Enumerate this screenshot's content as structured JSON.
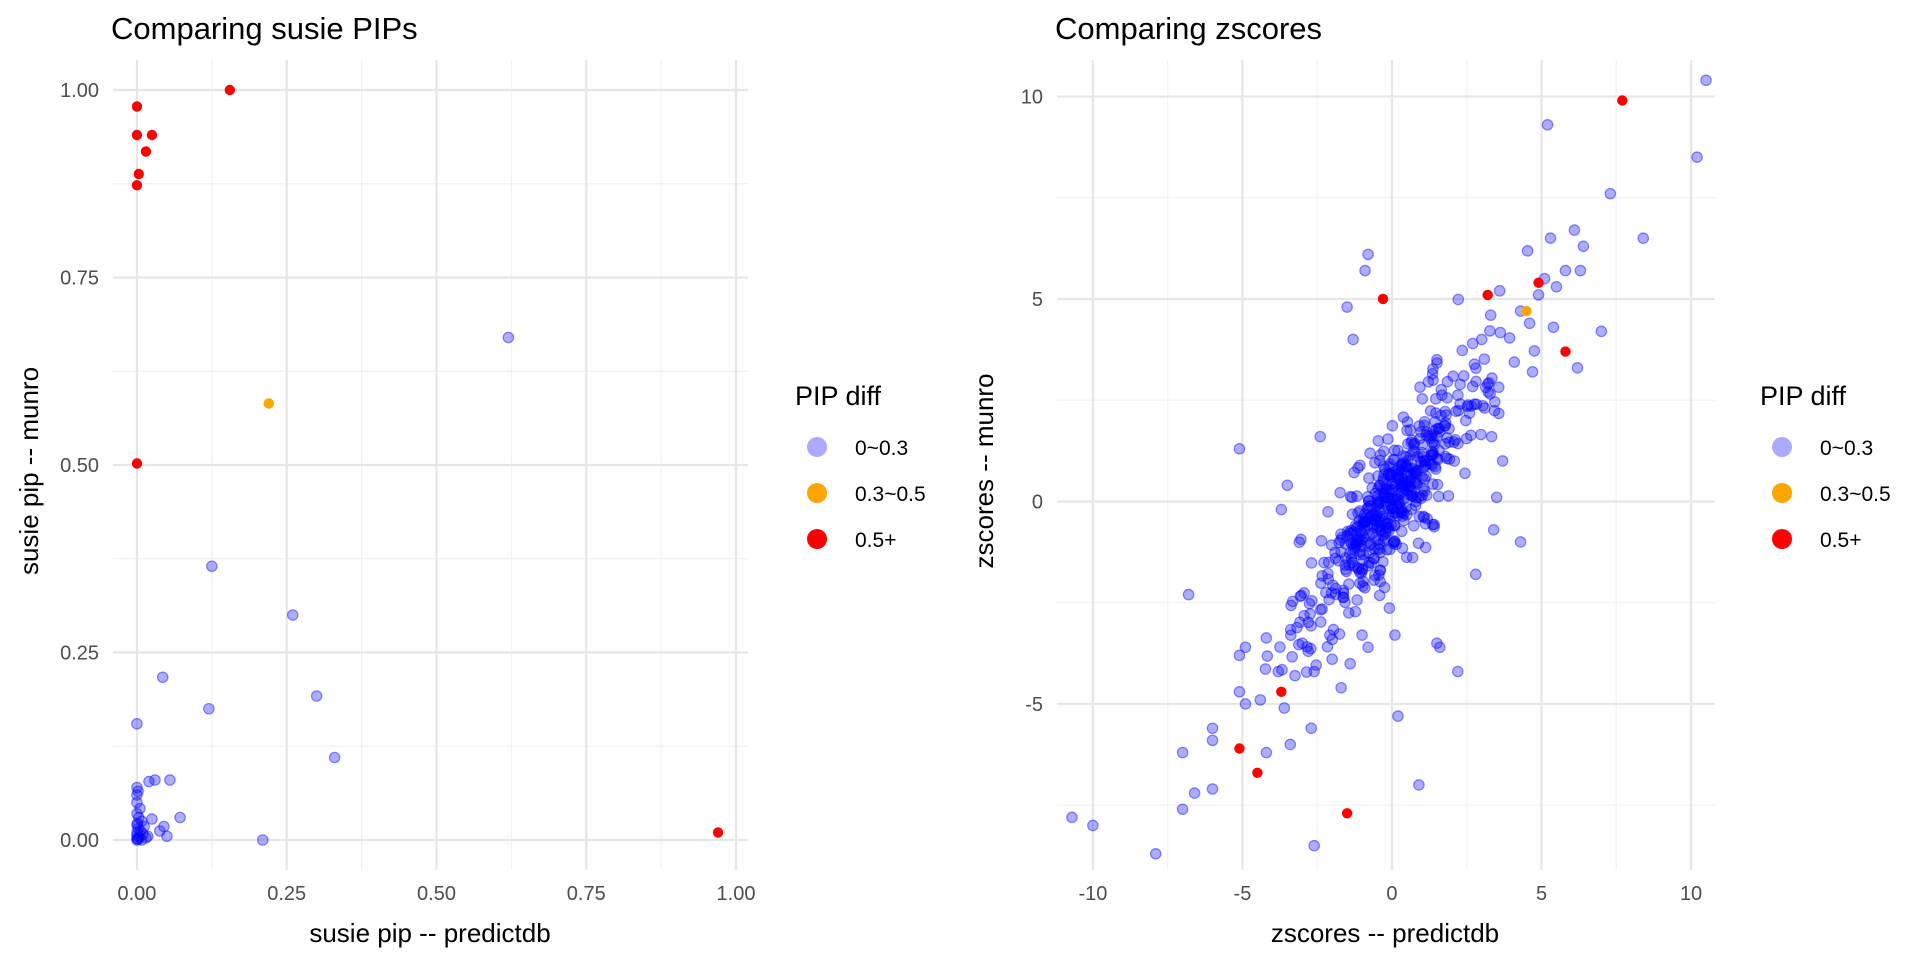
{
  "chart_data": [
    {
      "type": "scatter",
      "title": "Comparing susie PIPs",
      "xlabel": "susie pip -- predictdb",
      "ylabel": "susie pip -- munro",
      "xlim": [
        -0.04,
        1.02
      ],
      "ylim": [
        -0.04,
        1.04
      ],
      "x_ticks": [
        0,
        0.25,
        0.5,
        0.75,
        1.0
      ],
      "x_tick_labels": [
        "0.00",
        "0.25",
        "0.50",
        "0.75",
        "1.00"
      ],
      "y_ticks": [
        0,
        0.25,
        0.5,
        0.75,
        1.0
      ],
      "y_tick_labels": [
        "0.00",
        "0.25",
        "0.50",
        "0.75",
        "1.00"
      ],
      "grid": true,
      "legend": {
        "title": "PIP diff",
        "position": "right",
        "entries": [
          {
            "label": "0~0.3",
            "color": "#aaaaff"
          },
          {
            "label": "0.3~0.5",
            "color": "#ffa500"
          },
          {
            "label": "0.5+",
            "color": "#ff0000"
          }
        ]
      },
      "series": [
        {
          "name": "0~0.3",
          "color": "#0000ff",
          "points": [
            [
              0.62,
              0.67
            ],
            [
              0.125,
              0.365
            ],
            [
              0.26,
              0.3
            ],
            [
              0.043,
              0.217
            ],
            [
              0.12,
              0.175
            ],
            [
              0.3,
              0.192
            ],
            [
              0.33,
              0.11
            ],
            [
              0.0,
              0.155
            ],
            [
              0.055,
              0.08
            ],
            [
              0.03,
              0.08
            ],
            [
              0.02,
              0.078
            ],
            [
              0.072,
              0.03
            ],
            [
              0.045,
              0.018
            ],
            [
              0.05,
              0.005
            ],
            [
              0.038,
              0.012
            ],
            [
              0.21,
              0.0
            ],
            [
              0.025,
              0.028
            ],
            [
              0.0,
              0.07
            ],
            [
              0.002,
              0.065
            ],
            [
              0.0,
              0.06
            ],
            [
              0.0,
              0.05
            ],
            [
              0.005,
              0.042
            ],
            [
              0.0,
              0.035
            ],
            [
              0.003,
              0.03
            ],
            [
              0.008,
              0.025
            ],
            [
              0.0,
              0.02
            ],
            [
              0.012,
              0.018
            ],
            [
              0.002,
              0.015
            ],
            [
              0.006,
              0.012
            ],
            [
              0.0,
              0.01
            ],
            [
              0.01,
              0.008
            ],
            [
              0.0,
              0.006
            ],
            [
              0.004,
              0.004
            ],
            [
              0.015,
              0.003
            ],
            [
              0.0,
              0.002
            ],
            [
              0.002,
              0.001
            ],
            [
              0.0,
              0.0
            ],
            [
              0.008,
              0.0
            ],
            [
              0.018,
              0.005
            ],
            [
              0.001,
              0.022
            ]
          ]
        },
        {
          "name": "0.3~0.5",
          "color": "#ffa500",
          "points": [
            [
              0.22,
              0.582
            ]
          ]
        },
        {
          "name": "0.5+",
          "color": "#ff0000",
          "points": [
            [
              0.155,
              1.0
            ],
            [
              0.0,
              0.978
            ],
            [
              0.0,
              0.94
            ],
            [
              0.025,
              0.94
            ],
            [
              0.015,
              0.918
            ],
            [
              0.003,
              0.888
            ],
            [
              0.0,
              0.873
            ],
            [
              0.0,
              0.502
            ],
            [
              0.97,
              0.01
            ]
          ]
        }
      ]
    },
    {
      "type": "scatter",
      "title": "Comparing zscores",
      "xlabel": "zscores -- predictdb",
      "ylabel": "zscores -- munro",
      "xlim": [
        -11.2,
        10.8
      ],
      "ylim": [
        -9.1,
        10.9
      ],
      "x_ticks": [
        -10,
        -5,
        0,
        5,
        10
      ],
      "x_tick_labels": [
        "-10",
        "-5",
        "0",
        "5",
        "10"
      ],
      "y_ticks": [
        -5,
        0,
        5,
        10
      ],
      "y_tick_labels": [
        "-5",
        "0",
        "5",
        "10"
      ],
      "grid": true,
      "legend": {
        "title": "PIP diff",
        "position": "right",
        "entries": [
          {
            "label": "0~0.3",
            "color": "#aaaaff"
          },
          {
            "label": "0.3~0.5",
            "color": "#ffa500"
          },
          {
            "label": "0.5+",
            "color": "#ff0000"
          }
        ]
      },
      "series": [
        {
          "name": "0~0.3",
          "color": "#0000ff",
          "points": [
            [
              10.5,
              10.4
            ],
            [
              10.2,
              8.5
            ],
            [
              5.2,
              9.3
            ],
            [
              7.3,
              7.6
            ],
            [
              6.1,
              6.7
            ],
            [
              6.4,
              6.3
            ],
            [
              5.3,
              6.5
            ],
            [
              8.4,
              6.5
            ],
            [
              5.8,
              5.7
            ],
            [
              5.1,
              5.5
            ],
            [
              4.9,
              5.1
            ],
            [
              6.3,
              5.7
            ],
            [
              5.5,
              5.3
            ],
            [
              4.3,
              4.7
            ],
            [
              4.6,
              4.4
            ],
            [
              7.0,
              4.2
            ],
            [
              5.4,
              4.3
            ],
            [
              6.2,
              3.3
            ],
            [
              3.6,
              5.2
            ],
            [
              3.3,
              4.6
            ],
            [
              -0.8,
              6.1
            ],
            [
              -0.9,
              5.7
            ],
            [
              -1.5,
              4.8
            ],
            [
              -1.3,
              4.0
            ],
            [
              -3.5,
              0.4
            ],
            [
              -2.4,
              1.6
            ],
            [
              -5.1,
              1.3
            ],
            [
              -6.8,
              -2.3
            ],
            [
              -3.7,
              -0.2
            ],
            [
              -4.9,
              -3.6
            ],
            [
              -5.1,
              -3.8
            ],
            [
              -6.0,
              -5.6
            ],
            [
              -6.0,
              -5.9
            ],
            [
              -5.1,
              -4.7
            ],
            [
              -4.9,
              -5.0
            ],
            [
              -3.6,
              -5.1
            ],
            [
              -4.4,
              -4.9
            ],
            [
              -4.2,
              -6.2
            ],
            [
              -3.4,
              -6.0
            ],
            [
              -2.7,
              -5.6
            ],
            [
              -7.0,
              -6.2
            ],
            [
              -7.0,
              -7.6
            ],
            [
              -6.6,
              -7.2
            ],
            [
              -6.0,
              -7.1
            ],
            [
              -10.7,
              -7.8
            ],
            [
              -10.0,
              -8.0
            ],
            [
              -7.9,
              -8.7
            ],
            [
              -2.6,
              -8.5
            ],
            [
              0.2,
              -5.3
            ],
            [
              0.9,
              -7.0
            ],
            [
              -1.7,
              -4.6
            ],
            [
              -3.8,
              -4.2
            ],
            [
              -3.0,
              -3.5
            ],
            [
              -2.8,
              -3.7
            ],
            [
              -2.6,
              -4.2
            ],
            [
              -1.0,
              -3.3
            ],
            [
              -0.8,
              -3.6
            ],
            [
              0.1,
              -3.3
            ],
            [
              1.5,
              -3.5
            ],
            [
              1.6,
              -3.6
            ],
            [
              2.2,
              -4.2
            ],
            [
              2.8,
              -1.8
            ],
            [
              3.4,
              -0.7
            ],
            [
              4.3,
              -1.0
            ],
            [
              3.5,
              0.1
            ],
            [
              3.7,
              1.0
            ],
            [
              1.5,
              3.5
            ],
            [
              2.4,
              3.1
            ],
            [
              3.2,
              2.9
            ],
            [
              4.7,
              3.2
            ],
            [
              2.7,
              3.9
            ],
            [
              3.0,
              4.0
            ],
            [
              0.1,
              -0.6
            ],
            [
              -0.2,
              0.3
            ]
          ],
          "cluster": {
            "count": 520,
            "sd": 1.55,
            "rho": 0.86,
            "seed": 7
          }
        },
        {
          "name": "0.3~0.5",
          "color": "#ffa500",
          "points": [
            [
              4.5,
              4.7
            ]
          ]
        },
        {
          "name": "0.5+",
          "color": "#ff0000",
          "points": [
            [
              7.7,
              9.9
            ],
            [
              -0.3,
              5.0
            ],
            [
              3.2,
              5.1
            ],
            [
              4.9,
              5.4
            ],
            [
              5.8,
              3.7
            ],
            [
              -3.7,
              -4.7
            ],
            [
              -5.1,
              -6.1
            ],
            [
              -4.5,
              -6.7
            ],
            [
              -1.5,
              -7.7
            ]
          ]
        }
      ]
    }
  ]
}
